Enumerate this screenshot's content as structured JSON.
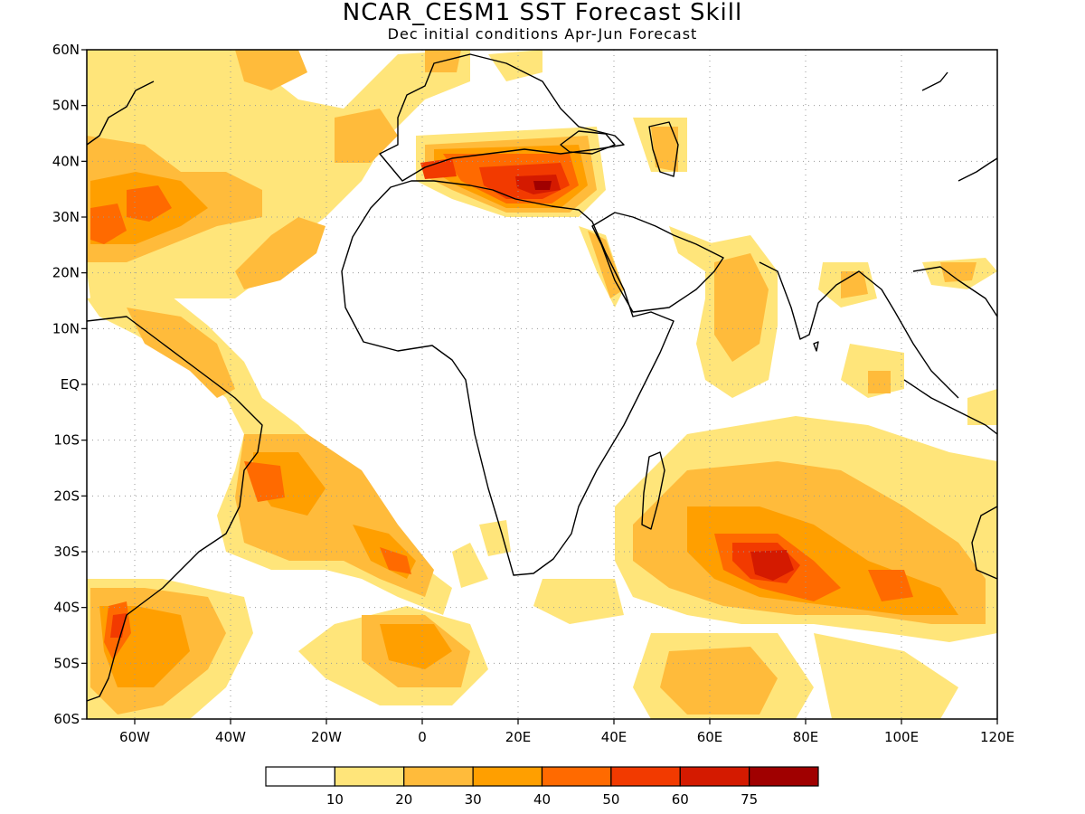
{
  "header": {
    "title": "NCAR_CESM1  SST Forecast Skill",
    "subtitle": "Dec initial conditions  Apr-Jun Forecast"
  },
  "map": {
    "lon_range": [
      -70,
      120
    ],
    "lat_range": [
      -60,
      60
    ],
    "lat_ticks": [
      {
        "value": 60,
        "label": "60N"
      },
      {
        "value": 50,
        "label": "50N"
      },
      {
        "value": 40,
        "label": "40N"
      },
      {
        "value": 30,
        "label": "30N"
      },
      {
        "value": 20,
        "label": "20N"
      },
      {
        "value": 10,
        "label": "10N"
      },
      {
        "value": 0,
        "label": "EQ"
      },
      {
        "value": -10,
        "label": "10S"
      },
      {
        "value": -20,
        "label": "20S"
      },
      {
        "value": -30,
        "label": "30S"
      },
      {
        "value": -40,
        "label": "40S"
      },
      {
        "value": -50,
        "label": "50S"
      },
      {
        "value": -60,
        "label": "60S"
      }
    ],
    "lon_ticks": [
      {
        "value": -60,
        "label": "60W"
      },
      {
        "value": -40,
        "label": "40W"
      },
      {
        "value": -20,
        "label": "20W"
      },
      {
        "value": 0,
        "label": "0"
      },
      {
        "value": 20,
        "label": "20E"
      },
      {
        "value": 40,
        "label": "40E"
      },
      {
        "value": 60,
        "label": "60E"
      },
      {
        "value": 80,
        "label": "80E"
      },
      {
        "value": 100,
        "label": "100E"
      },
      {
        "value": 120,
        "label": "120E"
      }
    ],
    "grid": true
  },
  "colorbar": {
    "colors": [
      "#ffffff",
      "#ffe57a",
      "#ffbb3b",
      "#ff9f00",
      "#ff6a00",
      "#f23a00",
      "#d41a00",
      "#a00000"
    ],
    "labels": [
      "10",
      "20",
      "30",
      "40",
      "50",
      "60",
      "75"
    ]
  }
}
